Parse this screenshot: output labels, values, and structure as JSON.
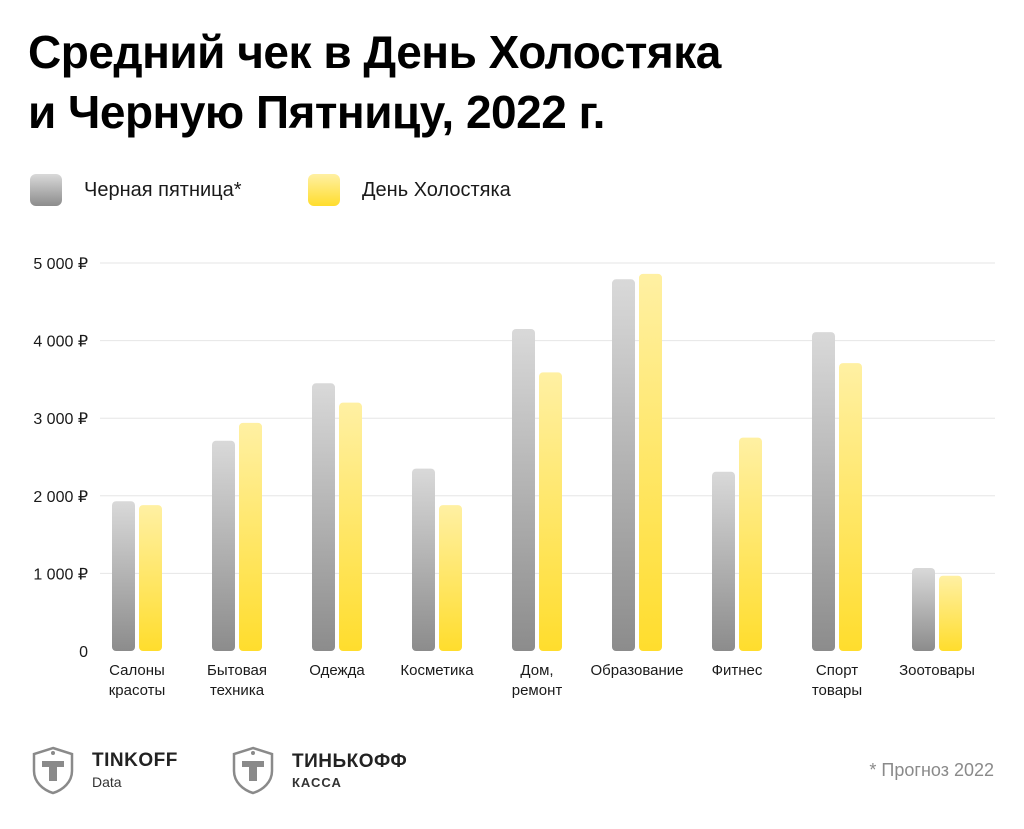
{
  "header": {
    "title_line1": "Средний чек в День Холостяка",
    "title_line2": "и Черную Пятницу, 2022 г."
  },
  "legend": {
    "items": [
      {
        "label": "Черная пятница*"
      },
      {
        "label": "День Холостяка"
      }
    ]
  },
  "colors": {
    "black_friday_top": "#d9d9d9",
    "black_friday_bottom": "#8c8c8c",
    "singles_day_top": "#fff0a3",
    "singles_day_bottom": "#ffdd2d",
    "grid": "#e6e6e6"
  },
  "chart_data": {
    "type": "bar",
    "categories": [
      [
        "Салоны",
        "красоты"
      ],
      [
        "Бытовая",
        "техника"
      ],
      [
        "Одежда"
      ],
      [
        "Косметика"
      ],
      [
        "Дом,",
        "ремонт"
      ],
      [
        "Образование"
      ],
      [
        "Фитнес"
      ],
      [
        "Спорт",
        "товары"
      ],
      [
        "Зоотовары"
      ]
    ],
    "series": [
      {
        "name": "Черная пятница*",
        "values": [
          1930,
          2710,
          3450,
          2350,
          4150,
          4790,
          2310,
          4110,
          1070
        ]
      },
      {
        "name": "День Холостяка",
        "values": [
          1880,
          2940,
          3200,
          1880,
          3590,
          4860,
          2750,
          3710,
          970
        ]
      }
    ],
    "ylim": [
      0,
      5000
    ],
    "yticks": [
      "0",
      "1 000 ₽",
      "2 000 ₽",
      "3 000 ₽",
      "4 000 ₽",
      "5 000 ₽"
    ],
    "grid": true,
    "legend_position": "top-left"
  },
  "footer": {
    "logo1_name": "TINKOFF",
    "logo1_sub": "Data",
    "logo2_name": "ТИНЬКОФФ",
    "logo2_sub": "КАССА",
    "note": "* Прогноз 2022"
  }
}
